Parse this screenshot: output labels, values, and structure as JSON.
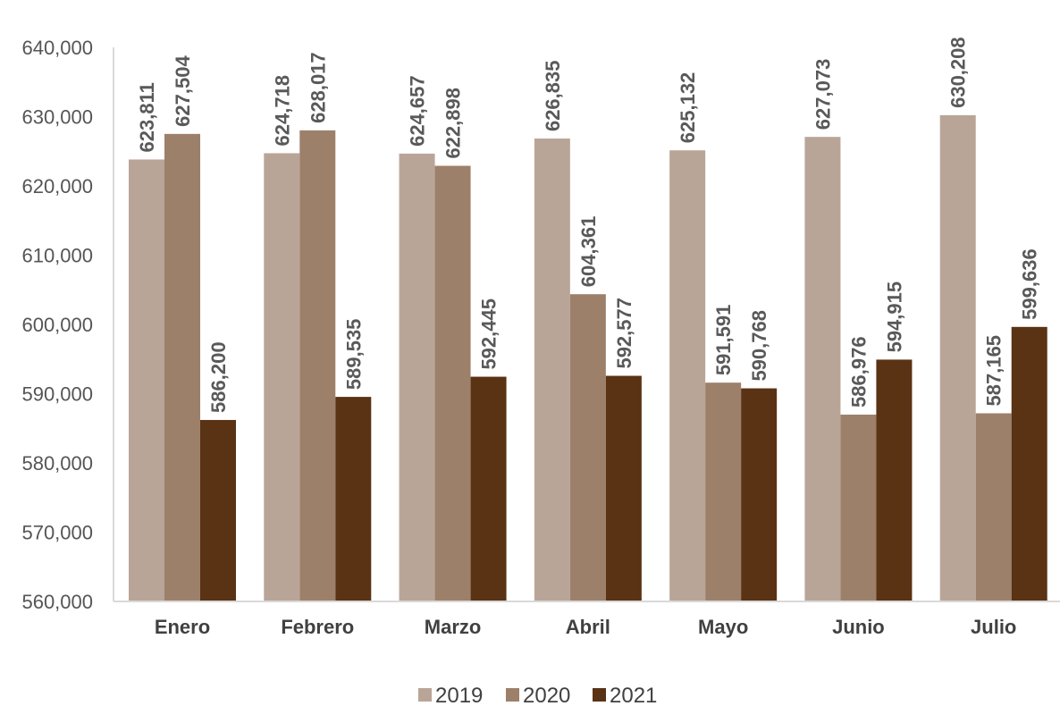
{
  "chart_data": {
    "type": "bar",
    "categories": [
      "Enero",
      "Febrero",
      "Marzo",
      "Abril",
      "Mayo",
      "Junio",
      "Julio"
    ],
    "series": [
      {
        "name": "2019",
        "color": "#b9a597",
        "values": [
          623811,
          624718,
          624657,
          626835,
          625132,
          627073,
          630208
        ],
        "labels": [
          "623,811",
          "624,718",
          "624,657",
          "626,835",
          "625,132",
          "627,073",
          "630,208"
        ]
      },
      {
        "name": "2020",
        "color": "#9d806a",
        "values": [
          627504,
          628017,
          622898,
          604361,
          591591,
          586976,
          587165
        ],
        "labels": [
          "627,504",
          "628,017",
          "622,898",
          "604,361",
          "591,591",
          "586,976",
          "587,165"
        ]
      },
      {
        "name": "2021",
        "color": "#5a3214",
        "values": [
          586200,
          589535,
          592445,
          592577,
          590768,
          594915,
          599636
        ],
        "labels": [
          "586,200",
          "589,535",
          "592,445",
          "592,577",
          "590,768",
          "594,915",
          "599,636"
        ]
      }
    ],
    "ylim": [
      560000,
      640000
    ],
    "yticks": [
      560000,
      570000,
      580000,
      590000,
      600000,
      610000,
      620000,
      630000,
      640000
    ],
    "ytick_labels": [
      "560,000",
      "570,000",
      "580,000",
      "590,000",
      "600,000",
      "610,000",
      "620,000",
      "630,000",
      "640,000"
    ],
    "title": "",
    "xlabel": "",
    "ylabel": "",
    "grid": false,
    "legend_position": "bottom",
    "axis_color": "#d9d9d9"
  }
}
